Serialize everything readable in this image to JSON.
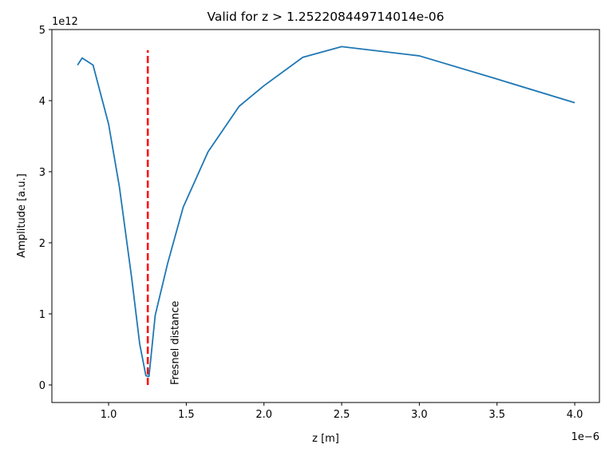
{
  "chart_data": {
    "type": "line",
    "title": "Valid for z > 1.252208449714014e-06",
    "xlabel": "z [m]",
    "ylabel": "Amplitude [a.u.]",
    "x_offset_label": "1e−6",
    "y_offset_label": "1e12",
    "series": [
      {
        "color": "#1f77b4",
        "x": [
          0.8,
          0.83,
          0.9,
          1.0,
          1.07,
          1.15,
          1.2,
          1.24,
          1.26,
          1.3,
          1.38,
          1.48,
          1.64,
          1.84,
          2.0,
          2.25,
          2.5,
          3.0,
          3.49,
          4.0
        ],
        "values": [
          4.5,
          4.6,
          4.5,
          3.67,
          2.78,
          1.48,
          0.58,
          0.13,
          0.12,
          0.98,
          1.71,
          2.5,
          3.28,
          3.92,
          4.21,
          4.61,
          4.76,
          4.63,
          4.31,
          3.97
        ]
      }
    ],
    "vline": {
      "x": 1.2522,
      "ymin": 0,
      "ymax": 4.71,
      "color": "#ff0000"
    },
    "annotation": {
      "text": "Fresnel distance",
      "x": 1.45,
      "y": 0,
      "color": "#ff0000"
    },
    "xlim": [
      0.635,
      4.159
    ],
    "ylim": [
      -0.247,
      5
    ],
    "xticks": [
      {
        "value": 1,
        "label": "1.0"
      },
      {
        "value": 1.5,
        "label": "1.5"
      },
      {
        "value": 2,
        "label": "2.0"
      },
      {
        "value": 2.5,
        "label": "2.5"
      },
      {
        "value": 3,
        "label": "3.0"
      },
      {
        "value": 3.5,
        "label": "3.5"
      },
      {
        "value": 4,
        "label": "4.0"
      }
    ],
    "yticks": [
      0,
      1,
      2,
      3,
      4,
      5
    ]
  }
}
